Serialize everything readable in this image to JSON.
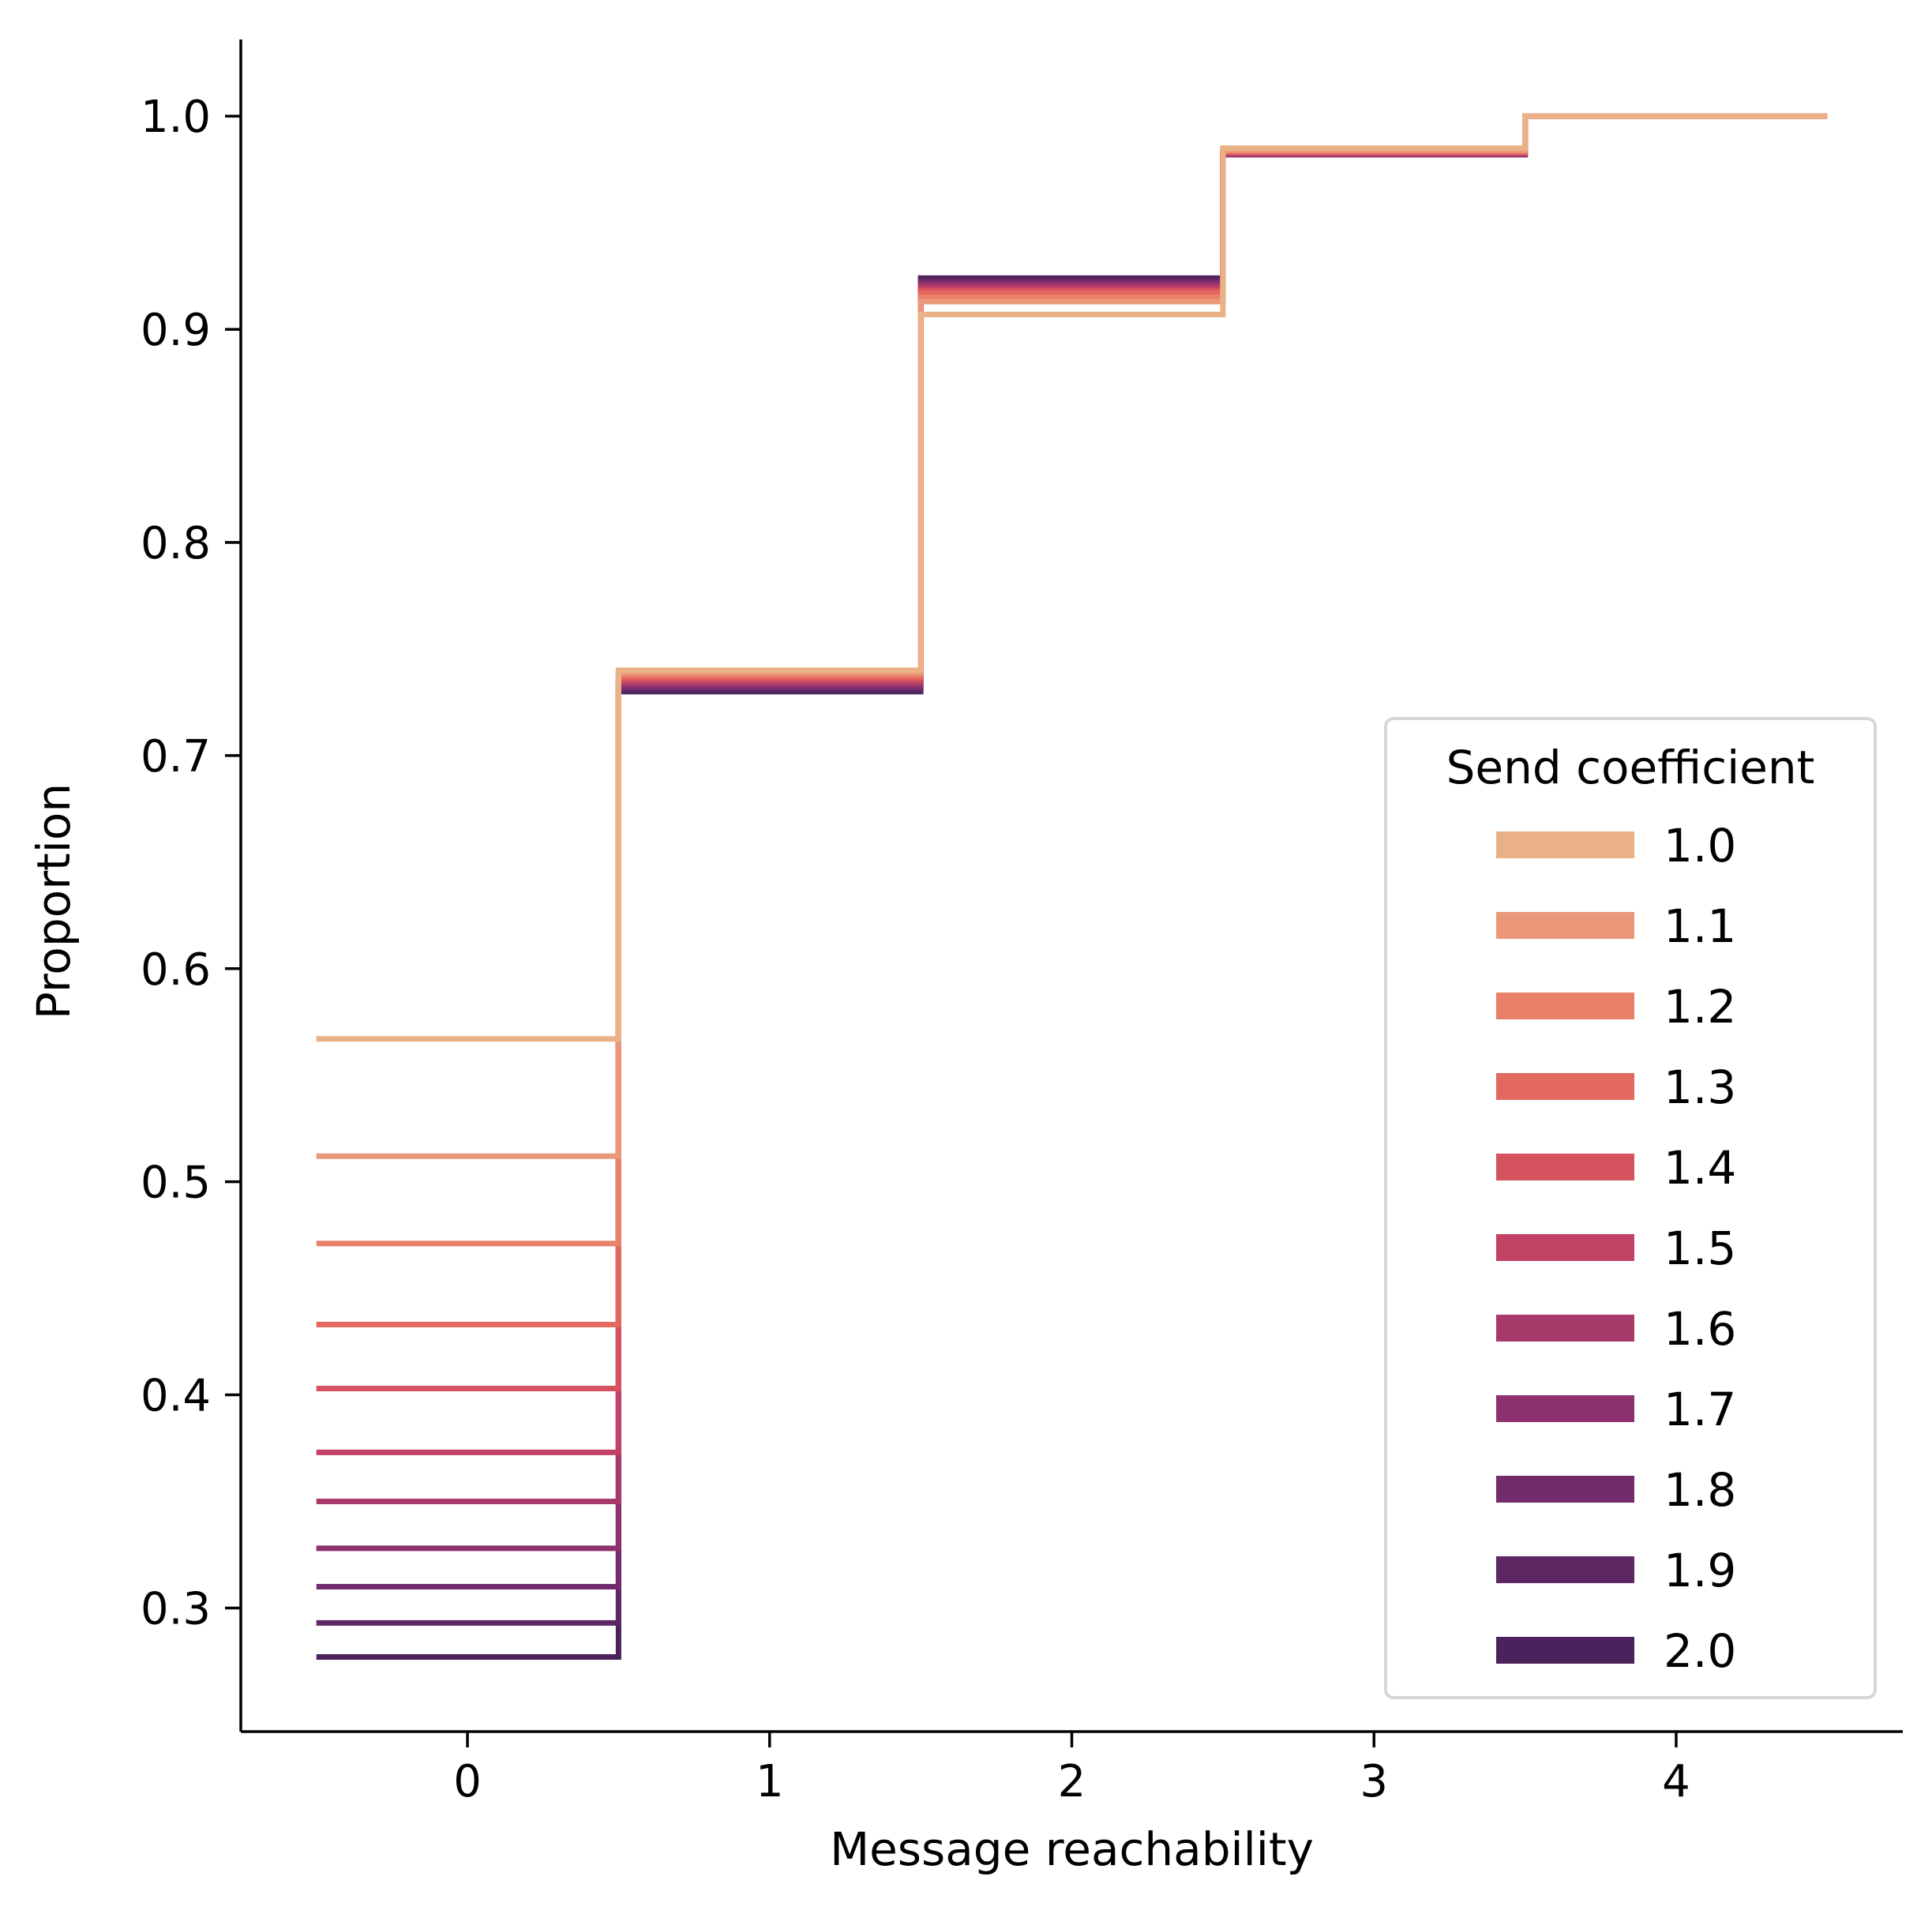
{
  "chart_data": {
    "type": "line",
    "subtype": "ecdf-step",
    "title": "",
    "xlabel": "Message reachability",
    "ylabel": "Proportion",
    "xlim": [
      -0.75,
      4.75
    ],
    "ylim": [
      0.242,
      1.036
    ],
    "xticks": [
      0,
      1,
      2,
      3,
      4
    ],
    "yticks": [
      0.3,
      0.4,
      0.5,
      0.6,
      0.7,
      0.8,
      0.9,
      1.0
    ],
    "xtick_labels": [
      "0",
      "1",
      "2",
      "3",
      "4"
    ],
    "ytick_labels": [
      "0.3",
      "0.4",
      "0.5",
      "0.6",
      "0.7",
      "0.8",
      "0.9",
      "1.0"
    ],
    "step_edges": [
      -0.5,
      0.5,
      1.5,
      2.5,
      3.5,
      4.5
    ],
    "grid": false,
    "spines": "left-bottom",
    "legend": {
      "title": "Send coefficient",
      "placement": "lower right"
    },
    "series": [
      {
        "name": "1.0",
        "color": "#ebb186",
        "values": [
          0.567,
          0.74,
          0.907,
          0.985,
          1.0
        ]
      },
      {
        "name": "1.1",
        "color": "#ea977a",
        "values": [
          0.512,
          0.739,
          0.913,
          0.984,
          1.0
        ]
      },
      {
        "name": "1.2",
        "color": "#e8806a",
        "values": [
          0.471,
          0.738,
          0.915,
          0.984,
          1.0
        ]
      },
      {
        "name": "1.3",
        "color": "#e3685f",
        "values": [
          0.433,
          0.737,
          0.917,
          0.983,
          1.0
        ]
      },
      {
        "name": "1.4",
        "color": "#d5525f",
        "values": [
          0.403,
          0.736,
          0.918,
          0.983,
          1.0
        ]
      },
      {
        "name": "1.5",
        "color": "#c24265",
        "values": [
          0.373,
          0.735,
          0.919,
          0.983,
          1.0
        ]
      },
      {
        "name": "1.6",
        "color": "#a83a6b",
        "values": [
          0.35,
          0.734,
          0.92,
          0.982,
          1.0
        ]
      },
      {
        "name": "1.7",
        "color": "#8e316f",
        "values": [
          0.328,
          0.733,
          0.921,
          0.982,
          1.0
        ]
      },
      {
        "name": "1.8",
        "color": "#742b6c",
        "values": [
          0.31,
          0.732,
          0.922,
          0.982,
          1.0
        ]
      },
      {
        "name": "1.9",
        "color": "#5e2763",
        "values": [
          0.293,
          0.731,
          0.923,
          0.982,
          1.0
        ]
      },
      {
        "name": "2.0",
        "color": "#4b225c",
        "values": [
          0.277,
          0.73,
          0.924,
          0.982,
          1.0
        ]
      }
    ]
  }
}
